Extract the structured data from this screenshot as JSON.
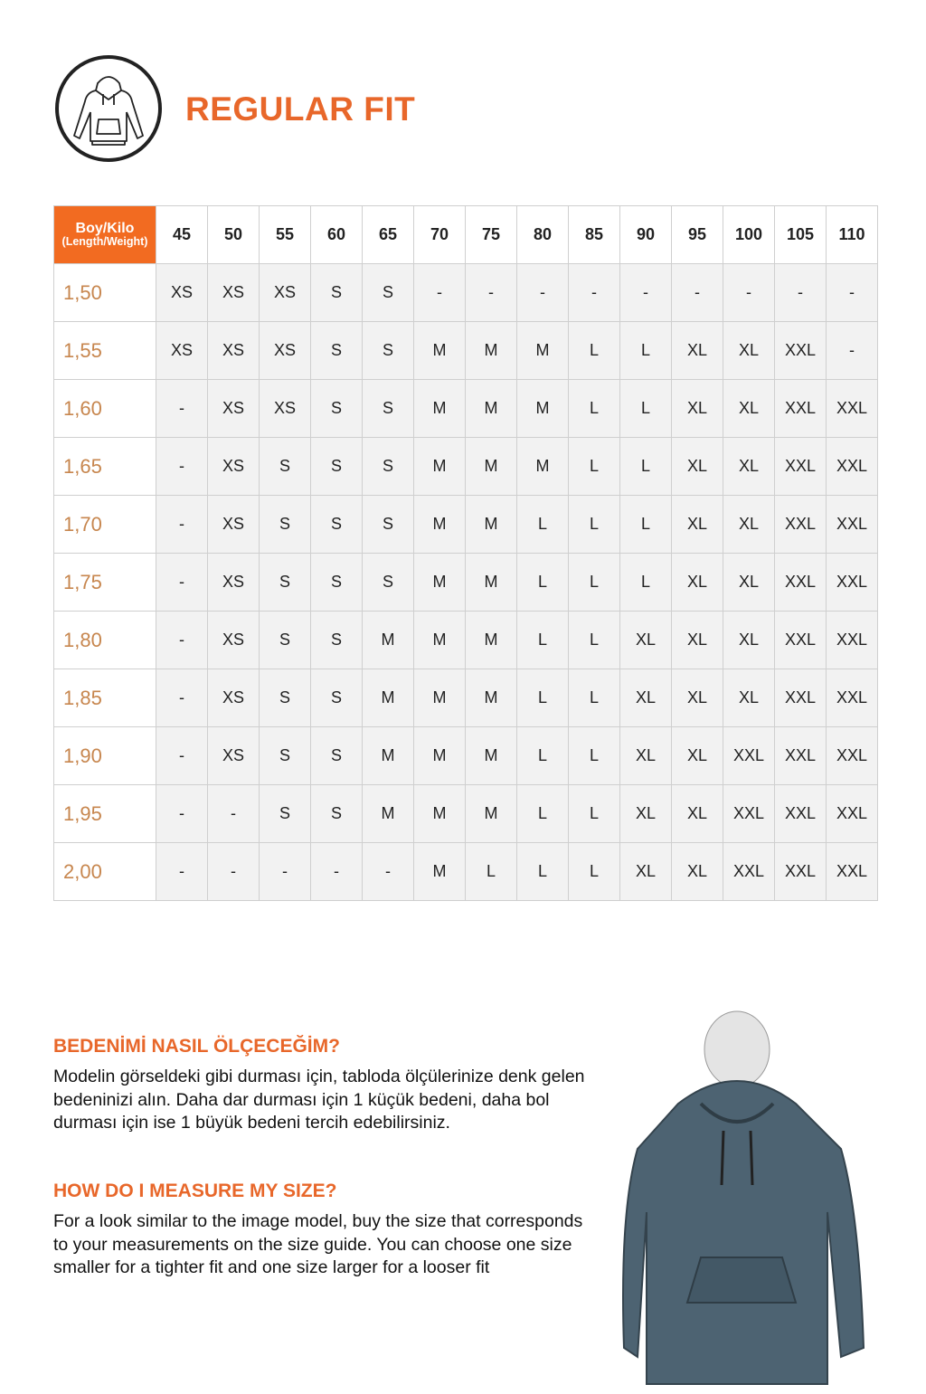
{
  "header": {
    "title": "REGULAR FIT",
    "logo_icon": "hoodie-icon"
  },
  "colors": {
    "accent": "#f26b21",
    "title": "#e8672a",
    "height_label": "#c7864e",
    "cell_bg": "#f2f2f2"
  },
  "size_table": {
    "corner_label": "Boy/Kilo",
    "corner_sublabel": "(Length/Weight)",
    "weights": [
      "45",
      "50",
      "55",
      "60",
      "65",
      "70",
      "75",
      "80",
      "85",
      "90",
      "95",
      "100",
      "105",
      "110"
    ],
    "rows": [
      {
        "height": "1,50",
        "sizes": [
          "XS",
          "XS",
          "XS",
          "S",
          "S",
          "-",
          "-",
          "-",
          "-",
          "-",
          "-",
          "-",
          "-",
          "-"
        ]
      },
      {
        "height": "1,55",
        "sizes": [
          "XS",
          "XS",
          "XS",
          "S",
          "S",
          "M",
          "M",
          "M",
          "L",
          "L",
          "XL",
          "XL",
          "XXL",
          "-"
        ]
      },
      {
        "height": "1,60",
        "sizes": [
          "-",
          "XS",
          "XS",
          "S",
          "S",
          "M",
          "M",
          "M",
          "L",
          "L",
          "XL",
          "XL",
          "XXL",
          "XXL"
        ]
      },
      {
        "height": "1,65",
        "sizes": [
          "-",
          "XS",
          "S",
          "S",
          "S",
          "M",
          "M",
          "M",
          "L",
          "L",
          "XL",
          "XL",
          "XXL",
          "XXL"
        ]
      },
      {
        "height": "1,70",
        "sizes": [
          "-",
          "XS",
          "S",
          "S",
          "S",
          "M",
          "M",
          "L",
          "L",
          "L",
          "XL",
          "XL",
          "XXL",
          "XXL"
        ]
      },
      {
        "height": "1,75",
        "sizes": [
          "-",
          "XS",
          "S",
          "S",
          "S",
          "M",
          "M",
          "L",
          "L",
          "L",
          "XL",
          "XL",
          "XXL",
          "XXL"
        ]
      },
      {
        "height": "1,80",
        "sizes": [
          "-",
          "XS",
          "S",
          "S",
          "M",
          "M",
          "M",
          "L",
          "L",
          "XL",
          "XL",
          "XL",
          "XXL",
          "XXL"
        ]
      },
      {
        "height": "1,85",
        "sizes": [
          "-",
          "XS",
          "S",
          "S",
          "M",
          "M",
          "M",
          "L",
          "L",
          "XL",
          "XL",
          "XL",
          "XXL",
          "XXL"
        ]
      },
      {
        "height": "1,90",
        "sizes": [
          "-",
          "XS",
          "S",
          "S",
          "M",
          "M",
          "M",
          "L",
          "L",
          "XL",
          "XL",
          "XXL",
          "XXL",
          "XXL"
        ]
      },
      {
        "height": "1,95",
        "sizes": [
          "-",
          "-",
          "S",
          "S",
          "M",
          "M",
          "M",
          "L",
          "L",
          "XL",
          "XL",
          "XXL",
          "XXL",
          "XXL"
        ]
      },
      {
        "height": "2,00",
        "sizes": [
          "-",
          "-",
          "-",
          "-",
          "-",
          "M",
          "L",
          "L",
          "L",
          "XL",
          "XL",
          "XXL",
          "XXL",
          "XXL"
        ]
      }
    ]
  },
  "guide_tr": {
    "heading": "BEDENİMİ NASIL ÖLÇECEĞİM?",
    "text": "Modelin görseldeki gibi durması için, tabloda ölçülerinize denk gelen bedeninizi alın. Daha dar durması için 1 küçük bedeni, daha bol durması için ise 1 büyük bedeni tercih edebilirsiniz."
  },
  "guide_en": {
    "heading": "HOW DO I MEASURE MY SIZE?",
    "text": "For a look similar to the image model, buy the size that corresponds to your measurements on the size guide. You can choose one size smaller for a tighter fit and one size larger for a looser fit"
  }
}
